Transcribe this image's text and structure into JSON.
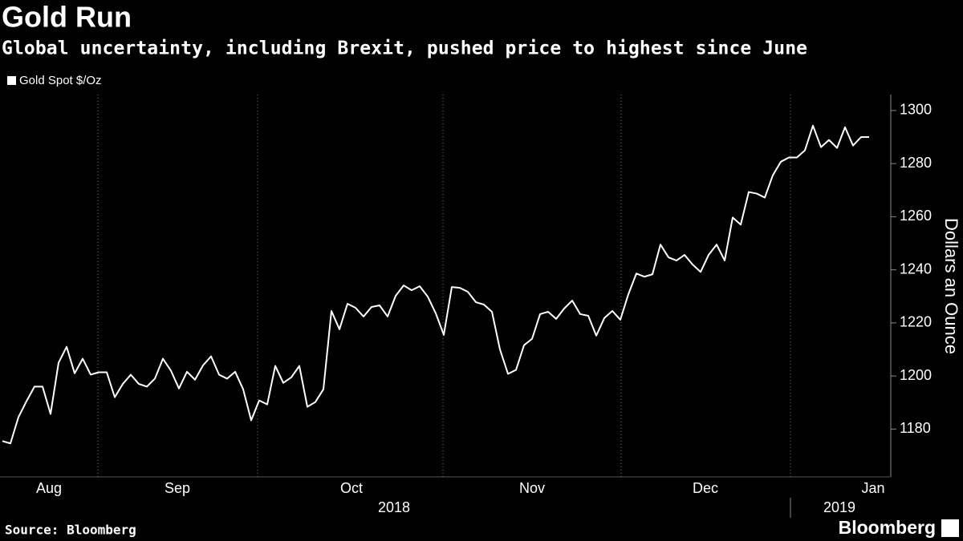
{
  "chart_data": {
    "type": "line",
    "title": "Gold Run",
    "subtitle": "Global uncertainty, including Brexit, pushed price to highest since June",
    "y_label": "Dollars an Ounce",
    "source": "Source: Bloomberg",
    "brand": "Bloomberg",
    "series": [
      {
        "name": "Gold Spot $/Oz",
        "color": "#ffffff",
        "values": [
          1175.5,
          1174.6,
          1184.5,
          1190.5,
          1196,
          1196,
          1185.7,
          1205,
          1211,
          1201,
          1206.5,
          1200.5,
          1201.4,
          1201.4,
          1192,
          1197,
          1200.5,
          1197,
          1196,
          1199,
          1206.5,
          1202,
          1195.3,
          1201.6,
          1198.6,
          1204,
          1207.4,
          1200.5,
          1199,
          1201.6,
          1195,
          1183.3,
          1190.8,
          1189.3,
          1203.8,
          1197.4,
          1199.5,
          1203.8,
          1188.4,
          1190.2,
          1195,
          1224.5,
          1217.6,
          1227.2,
          1225.7,
          1222.4,
          1226,
          1226.6,
          1222.4,
          1230.2,
          1234.1,
          1232.3,
          1233.8,
          1229.9,
          1223.6,
          1215.5,
          1233.5,
          1233.2,
          1231.7,
          1227.8,
          1226.9,
          1224.2,
          1210,
          1200.8,
          1202.3,
          1211.6,
          1214,
          1223.3,
          1224.2,
          1221.5,
          1225.4,
          1228.4,
          1223.3,
          1222.7,
          1215.2,
          1221.8,
          1224.5,
          1221.2,
          1230.8,
          1238.6,
          1237.4,
          1238.3,
          1249.5,
          1244.7,
          1243.5,
          1245.6,
          1242,
          1239.2,
          1245.6,
          1249.5,
          1243.5,
          1259.7,
          1257,
          1269.3,
          1268.7,
          1267.2,
          1275.6,
          1280.7,
          1282.3,
          1282.3,
          1285,
          1294.3,
          1286.2,
          1288.9,
          1285.9,
          1293.7,
          1286.8,
          1290,
          1290
        ]
      }
    ],
    "xlim": [
      0,
      108
    ],
    "xticks": [
      {
        "value": 5.8,
        "label": "Aug"
      },
      {
        "value": 21.8,
        "label": "Sep"
      },
      {
        "value": 43.5,
        "label": "Oct"
      },
      {
        "value": 66,
        "label": "Nov"
      },
      {
        "value": 87.6,
        "label": "Dec"
      },
      {
        "value": 108.6,
        "label": "Jan"
      }
    ],
    "xgrid": [
      11.9,
      31.8,
      54.9,
      77.1,
      98.2
    ],
    "year_ticks": [
      {
        "value": 48.8,
        "label": "2018"
      },
      {
        "value": 104.3,
        "label": "2019"
      }
    ],
    "ylim": [
      1162,
      1306
    ],
    "yticks": [
      1180,
      1200,
      1220,
      1240,
      1260,
      1280,
      1300
    ]
  }
}
